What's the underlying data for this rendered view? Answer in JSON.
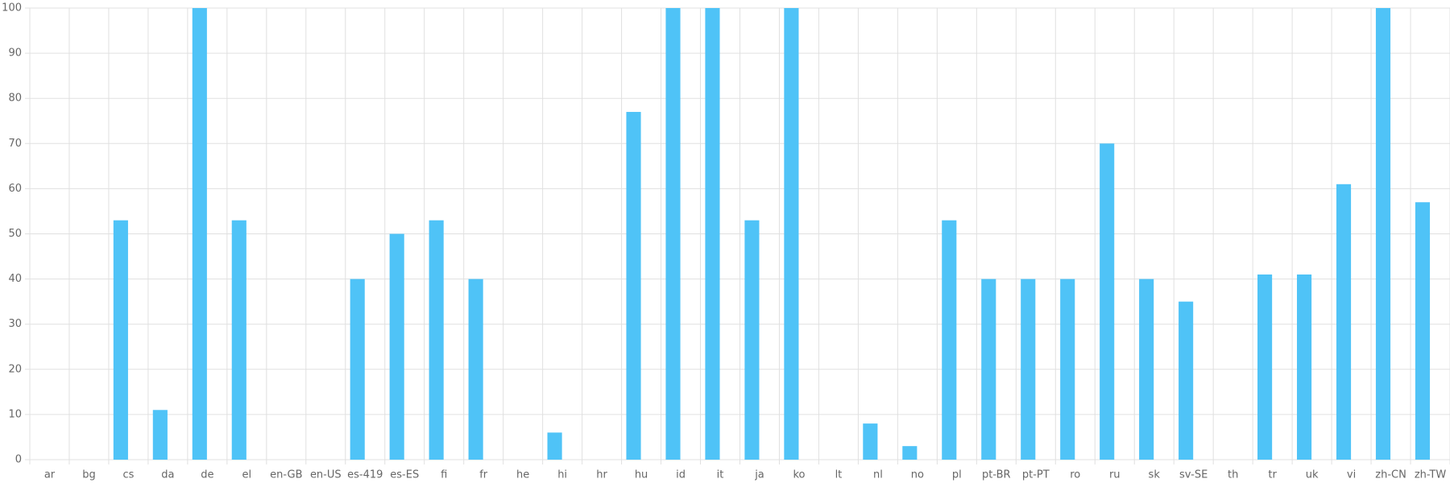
{
  "chart_data": {
    "type": "bar",
    "categories": [
      "ar",
      "bg",
      "cs",
      "da",
      "de",
      "el",
      "en-GB",
      "en-US",
      "es-419",
      "es-ES",
      "fi",
      "fr",
      "he",
      "hi",
      "hr",
      "hu",
      "id",
      "it",
      "ja",
      "ko",
      "lt",
      "nl",
      "no",
      "pl",
      "pt-BR",
      "pt-PT",
      "ro",
      "ru",
      "sk",
      "sv-SE",
      "th",
      "tr",
      "uk",
      "vi",
      "zh-CN",
      "zh-TW"
    ],
    "values": [
      0,
      0,
      53,
      11,
      100,
      53,
      0,
      0,
      40,
      50,
      53,
      40,
      0,
      6,
      0,
      77,
      100,
      100,
      53,
      100,
      0,
      8,
      3,
      53,
      40,
      40,
      40,
      70,
      40,
      35,
      0,
      41,
      41,
      61,
      100,
      57
    ],
    "color": "#4fc3f7",
    "ylim": [
      0,
      100
    ],
    "yticks": [
      0,
      10,
      20,
      30,
      40,
      50,
      60,
      70,
      80,
      90,
      100
    ],
    "grid": true
  }
}
